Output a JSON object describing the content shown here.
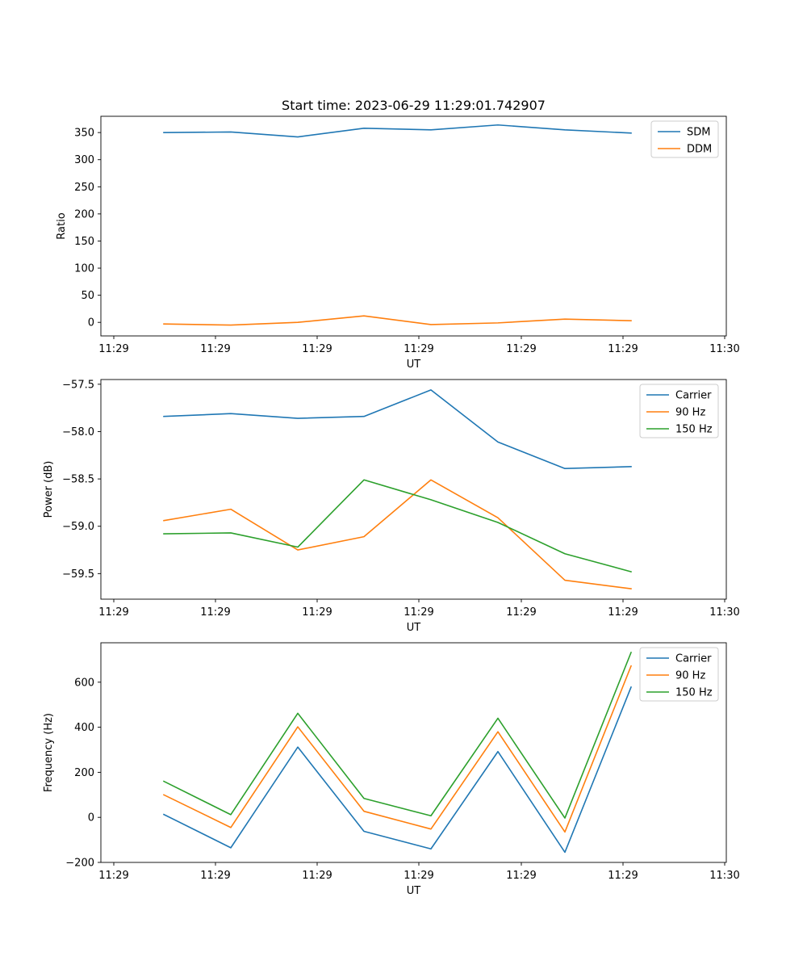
{
  "chart_data": [
    {
      "type": "line",
      "title": "Start time: 2023-06-29 11:29:01.742907",
      "xlabel": "UT",
      "ylabel": "Ratio",
      "x_tick_labels": [
        "11:29",
        "11:29",
        "11:29",
        "11:29",
        "11:29",
        "11:29",
        "11:30"
      ],
      "y_ticks": [
        0,
        50,
        100,
        150,
        200,
        250,
        300,
        350
      ],
      "ylim": [
        -25,
        380
      ],
      "legend_position": "top-right",
      "series": [
        {
          "name": "SDM",
          "color": "#1f77b4",
          "values": [
            350,
            351,
            342,
            358,
            355,
            364,
            355,
            349
          ]
        },
        {
          "name": "DDM",
          "color": "#ff7f0e",
          "values": [
            -3,
            -5,
            0,
            12,
            -4,
            -1,
            6,
            3
          ]
        }
      ]
    },
    {
      "type": "line",
      "title": "",
      "xlabel": "UT",
      "ylabel": "Power (dB)",
      "x_tick_labels": [
        "11:29",
        "11:29",
        "11:29",
        "11:29",
        "11:29",
        "11:29",
        "11:30"
      ],
      "y_ticks": [
        -57.5,
        -58.0,
        -58.5,
        -59.0,
        -59.5
      ],
      "y_tick_labels": [
        "−57.5",
        "−58.0",
        "−58.5",
        "−59.0",
        "−59.5"
      ],
      "ylim": [
        -59.77,
        -57.45
      ],
      "legend_position": "top-right",
      "series": [
        {
          "name": "Carrier",
          "color": "#1f77b4",
          "values": [
            -57.84,
            -57.81,
            -57.86,
            -57.84,
            -57.56,
            -58.11,
            -58.39,
            -58.37
          ]
        },
        {
          "name": "90 Hz",
          "color": "#ff7f0e",
          "values": [
            -58.94,
            -58.82,
            -59.25,
            -59.11,
            -58.51,
            -58.91,
            -59.57,
            -59.66
          ]
        },
        {
          "name": "150 Hz",
          "color": "#2ca02c",
          "values": [
            -59.08,
            -59.07,
            -59.22,
            -58.51,
            -58.72,
            -58.96,
            -59.29,
            -59.48
          ]
        }
      ]
    },
    {
      "type": "line",
      "title": "",
      "xlabel": "UT",
      "ylabel": "Frequency (Hz)",
      "x_tick_labels": [
        "11:29",
        "11:29",
        "11:29",
        "11:29",
        "11:29",
        "11:29",
        "11:30"
      ],
      "y_ticks": [
        -200,
        0,
        200,
        400,
        600
      ],
      "y_tick_labels": [
        "−200",
        "0",
        "200",
        "400",
        "600"
      ],
      "ylim": [
        -200,
        775
      ],
      "legend_position": "top-right",
      "series": [
        {
          "name": "Carrier",
          "color": "#1f77b4",
          "values": [
            13,
            -135,
            312,
            -62,
            -140,
            292,
            -155,
            578
          ]
        },
        {
          "name": "90 Hz",
          "color": "#ff7f0e",
          "values": [
            100,
            -45,
            402,
            27,
            -52,
            380,
            -65,
            672
          ]
        },
        {
          "name": "150 Hz",
          "color": "#2ca02c",
          "values": [
            160,
            12,
            462,
            84,
            7,
            440,
            -3,
            732
          ]
        }
      ]
    }
  ]
}
